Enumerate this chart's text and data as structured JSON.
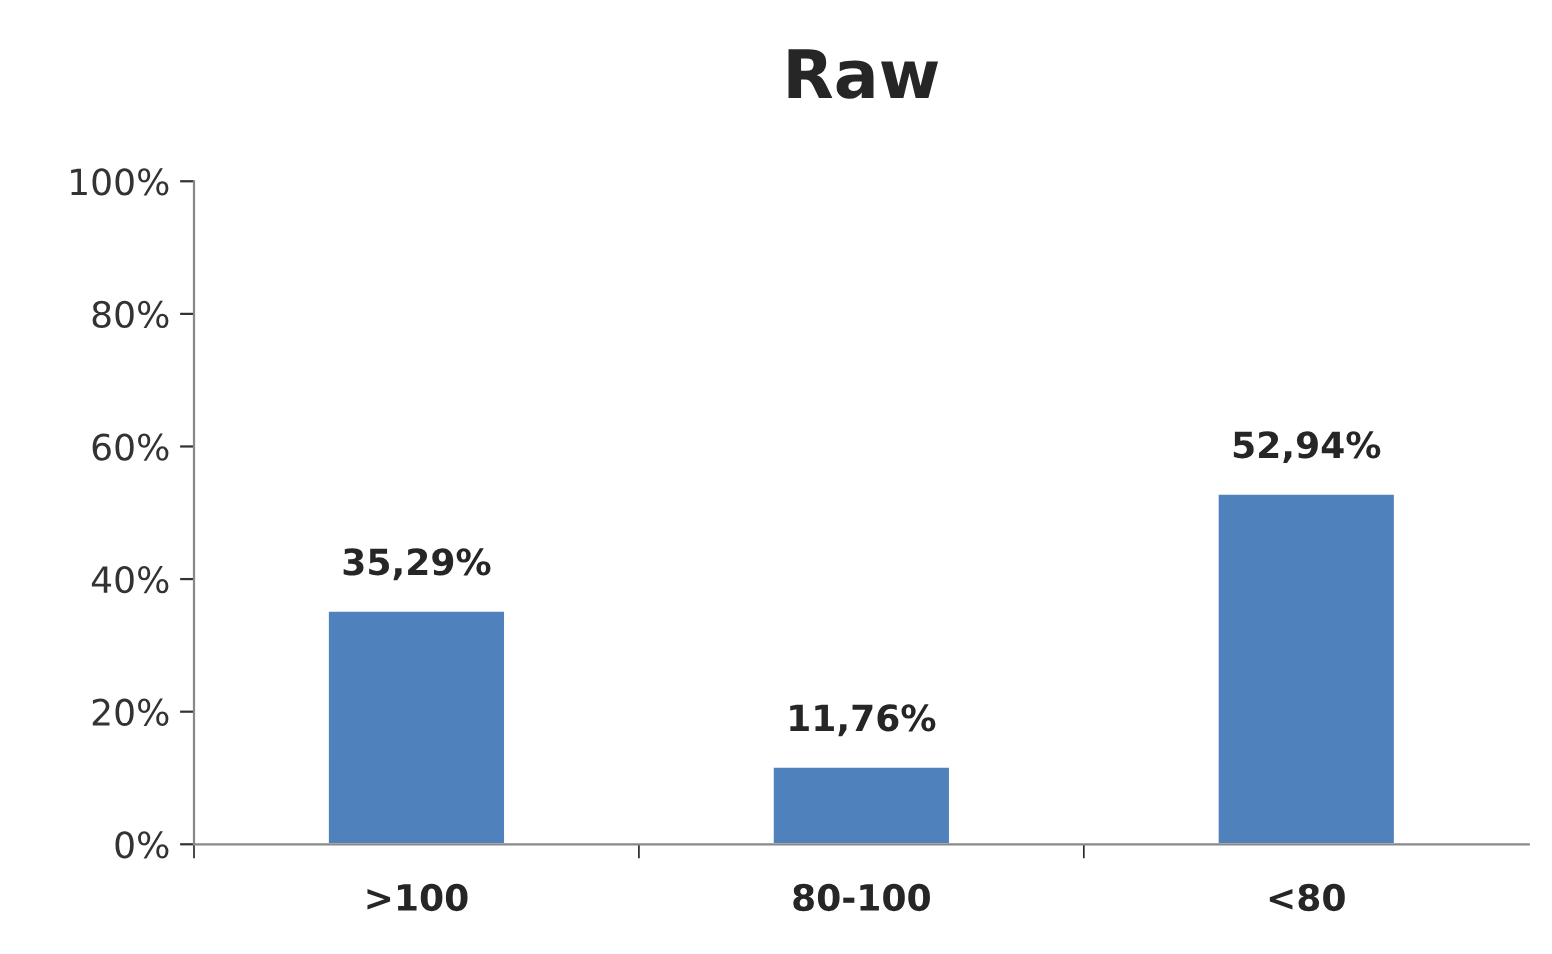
{
  "chart_data": {
    "type": "bar",
    "title": "Raw",
    "categories": [
      ">100",
      "80-100",
      "<80"
    ],
    "values": [
      35.29,
      11.76,
      52.94
    ],
    "value_labels": [
      "35,29%",
      "11,76%",
      "52,94%"
    ],
    "color": "#4f81bd",
    "ylim": [
      0,
      100
    ],
    "yticks": [
      {
        "value": 0,
        "label": "0%"
      },
      {
        "value": 20,
        "label": "20%"
      },
      {
        "value": 40,
        "label": "40%"
      },
      {
        "value": 60,
        "label": "60%"
      },
      {
        "value": 80,
        "label": "80%"
      },
      {
        "value": 100,
        "label": "100%"
      }
    ],
    "grid": false,
    "legend": false
  }
}
